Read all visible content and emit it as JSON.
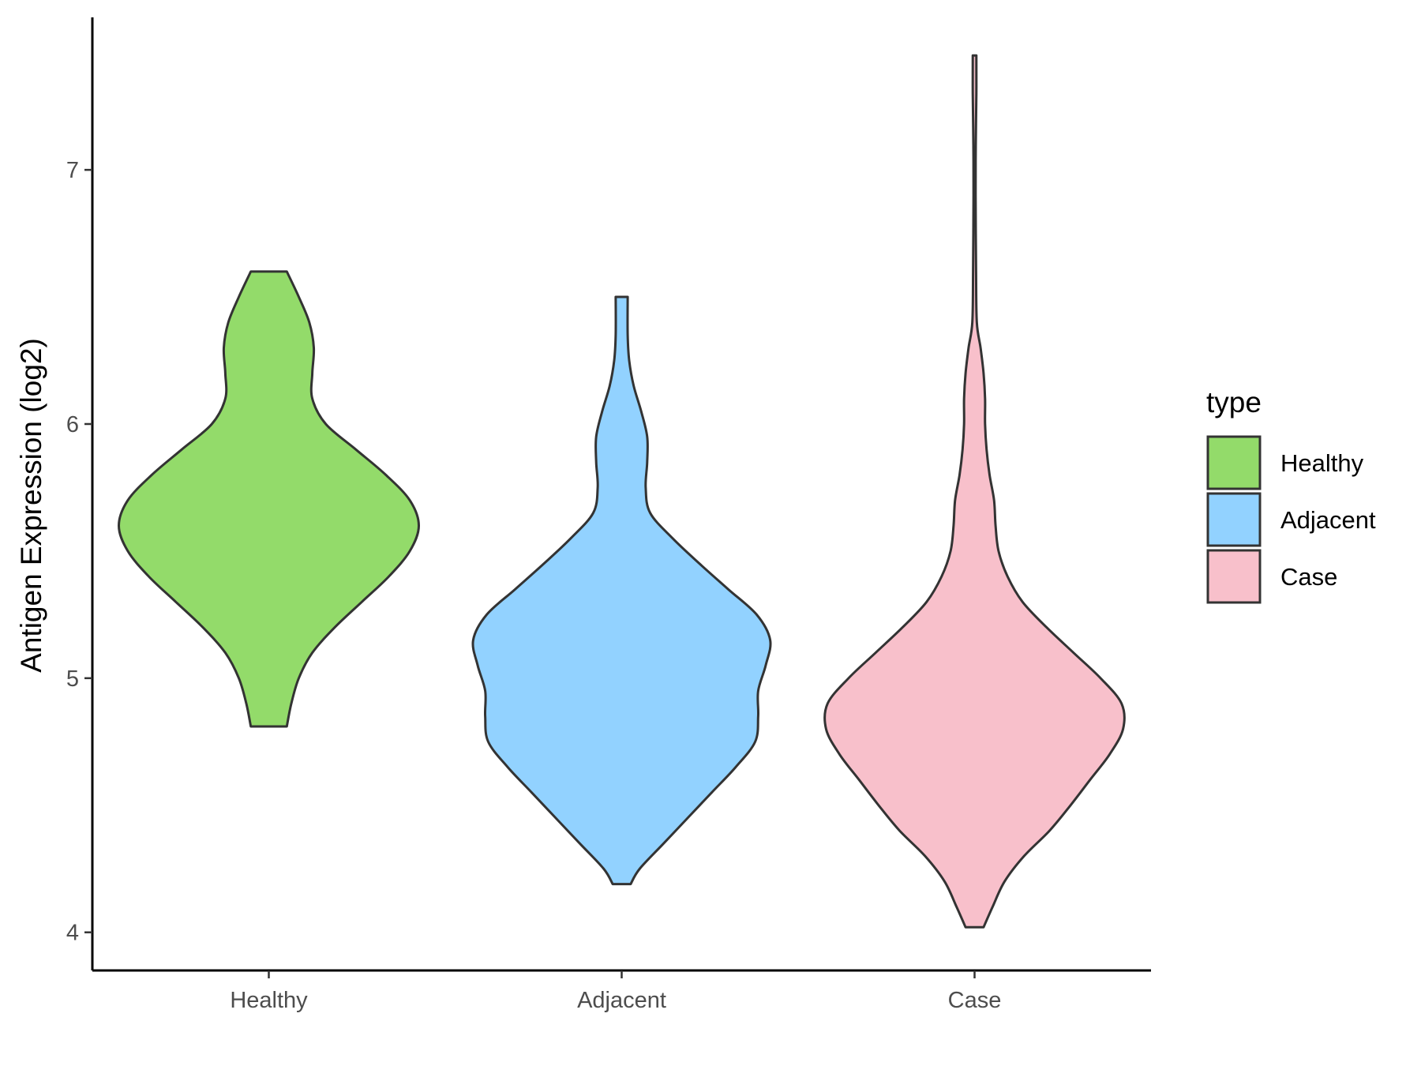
{
  "chart_data": {
    "type": "violin",
    "title": "",
    "xlabel": "",
    "ylabel": "Antigen Expression (log2)",
    "ylim": [
      3.85,
      7.6
    ],
    "yticks": [
      4,
      5,
      6,
      7
    ],
    "grid": false,
    "legend": {
      "title": "type",
      "placement": "right",
      "entries": [
        "Healthy",
        "Adjacent",
        "Case"
      ]
    },
    "categories": [
      "Healthy",
      "Adjacent",
      "Case"
    ],
    "colors": {
      "Healthy": "#93DB6A",
      "Adjacent": "#92D2FF",
      "Case": "#F8C0CB"
    },
    "series": [
      {
        "category": "Healthy",
        "min": 4.81,
        "max": 6.6,
        "density_profile": [
          [
            4.81,
            0.12
          ],
          [
            4.9,
            0.15
          ],
          [
            5.0,
            0.2
          ],
          [
            5.1,
            0.29
          ],
          [
            5.2,
            0.44
          ],
          [
            5.3,
            0.62
          ],
          [
            5.4,
            0.8
          ],
          [
            5.5,
            0.94
          ],
          [
            5.6,
            1.0
          ],
          [
            5.7,
            0.94
          ],
          [
            5.8,
            0.78
          ],
          [
            5.9,
            0.58
          ],
          [
            6.0,
            0.38
          ],
          [
            6.1,
            0.29
          ],
          [
            6.2,
            0.29
          ],
          [
            6.3,
            0.3
          ],
          [
            6.4,
            0.27
          ],
          [
            6.5,
            0.2
          ],
          [
            6.6,
            0.12
          ]
        ]
      },
      {
        "category": "Adjacent",
        "min": 4.19,
        "max": 6.5,
        "density_profile": [
          [
            4.19,
            0.06
          ],
          [
            4.25,
            0.12
          ],
          [
            4.35,
            0.28
          ],
          [
            4.45,
            0.44
          ],
          [
            4.55,
            0.6
          ],
          [
            4.65,
            0.76
          ],
          [
            4.75,
            0.89
          ],
          [
            4.85,
            0.91
          ],
          [
            4.95,
            0.91
          ],
          [
            5.05,
            0.96
          ],
          [
            5.15,
            0.99
          ],
          [
            5.25,
            0.9
          ],
          [
            5.35,
            0.71
          ],
          [
            5.45,
            0.52
          ],
          [
            5.55,
            0.34
          ],
          [
            5.65,
            0.19
          ],
          [
            5.75,
            0.16
          ],
          [
            5.85,
            0.17
          ],
          [
            5.95,
            0.17
          ],
          [
            6.05,
            0.13
          ],
          [
            6.15,
            0.08
          ],
          [
            6.25,
            0.05
          ],
          [
            6.35,
            0.04
          ],
          [
            6.5,
            0.04
          ]
        ]
      },
      {
        "category": "Case",
        "min": 4.02,
        "max": 7.45,
        "density_profile": [
          [
            4.02,
            0.06
          ],
          [
            4.1,
            0.12
          ],
          [
            4.2,
            0.2
          ],
          [
            4.3,
            0.33
          ],
          [
            4.4,
            0.5
          ],
          [
            4.5,
            0.64
          ],
          [
            4.6,
            0.77
          ],
          [
            4.7,
            0.9
          ],
          [
            4.8,
            0.99
          ],
          [
            4.9,
            0.98
          ],
          [
            5.0,
            0.84
          ],
          [
            5.1,
            0.66
          ],
          [
            5.2,
            0.48
          ],
          [
            5.3,
            0.32
          ],
          [
            5.4,
            0.22
          ],
          [
            5.5,
            0.16
          ],
          [
            5.6,
            0.14
          ],
          [
            5.7,
            0.13
          ],
          [
            5.8,
            0.1
          ],
          [
            5.9,
            0.08
          ],
          [
            6.0,
            0.07
          ],
          [
            6.1,
            0.07
          ],
          [
            6.2,
            0.06
          ],
          [
            6.3,
            0.04
          ],
          [
            6.4,
            0.015
          ],
          [
            6.6,
            0.01
          ],
          [
            6.9,
            0.007
          ],
          [
            7.1,
            0.008
          ],
          [
            7.3,
            0.012
          ],
          [
            7.45,
            0.012
          ]
        ]
      }
    ]
  }
}
